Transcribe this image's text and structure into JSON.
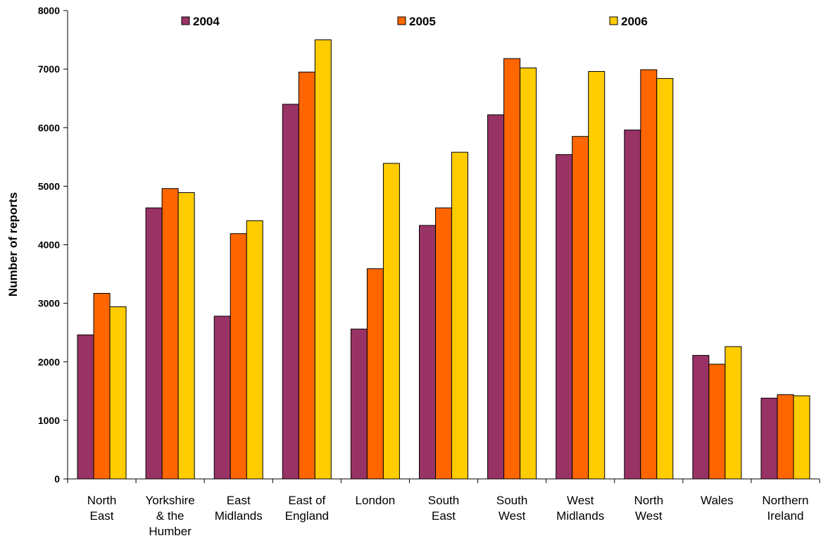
{
  "chart_data": {
    "type": "bar",
    "title": "",
    "xlabel": "",
    "ylabel": "Number of reports",
    "ylim": [
      0,
      8000
    ],
    "yticks": [
      0,
      1000,
      2000,
      3000,
      4000,
      5000,
      6000,
      7000,
      8000
    ],
    "grid": false,
    "legend_position": "top",
    "categories": [
      [
        "North",
        "East"
      ],
      [
        "Yorkshire",
        "& the",
        "Humber"
      ],
      [
        "East",
        "Midlands"
      ],
      [
        "East of",
        "England"
      ],
      [
        "London"
      ],
      [
        "South",
        "East"
      ],
      [
        "South",
        "West"
      ],
      [
        "West",
        "Midlands"
      ],
      [
        "North",
        "West"
      ],
      [
        "Wales"
      ],
      [
        "Northern",
        "Ireland"
      ]
    ],
    "series": [
      {
        "name": "2004",
        "color": "#993366",
        "values": [
          2460,
          4630,
          2780,
          6400,
          2560,
          4330,
          6220,
          5540,
          5960,
          2110,
          1380
        ]
      },
      {
        "name": "2005",
        "color": "#FF6600",
        "values": [
          3170,
          4960,
          4190,
          6950,
          3590,
          4630,
          7180,
          5850,
          6990,
          1960,
          1440
        ]
      },
      {
        "name": "2006",
        "color": "#FFCC00",
        "values": [
          2940,
          4890,
          4410,
          7500,
          5390,
          5580,
          7020,
          6960,
          6840,
          2260,
          1420
        ]
      }
    ]
  }
}
